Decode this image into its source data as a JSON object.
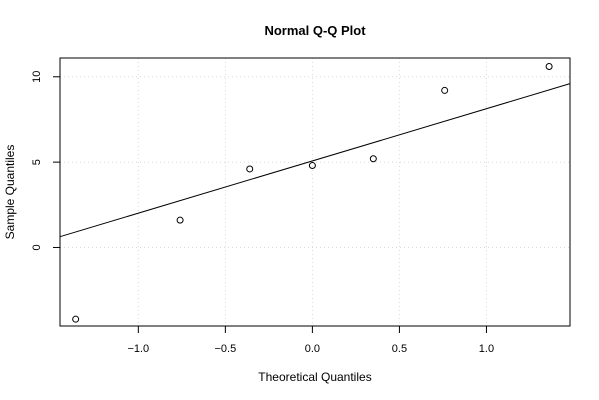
{
  "chart_data": {
    "type": "scatter",
    "title": "Normal Q-Q Plot",
    "xlabel": "Theoretical Quantiles",
    "ylabel": "Sample Quantiles",
    "xlim": [
      -1.45,
      1.48
    ],
    "ylim": [
      -4.6,
      11.1
    ],
    "xticks": [
      -1.0,
      -0.5,
      0.0,
      0.5,
      1.0
    ],
    "xtick_labels": [
      "−1.0",
      "−0.5",
      "0.0",
      "0.5",
      "1.0"
    ],
    "yticks": [
      0,
      5,
      10
    ],
    "ytick_labels": [
      "0",
      "5",
      "10"
    ],
    "grid": true,
    "points": [
      {
        "x": -1.36,
        "y": -4.2
      },
      {
        "x": -0.76,
        "y": 1.6
      },
      {
        "x": -0.36,
        "y": 4.6
      },
      {
        "x": 0.0,
        "y": 4.8
      },
      {
        "x": 0.35,
        "y": 5.2
      },
      {
        "x": 0.76,
        "y": 9.2
      },
      {
        "x": 1.36,
        "y": 10.6
      }
    ],
    "reference_line": {
      "intercept": 5.07,
      "slope": 3.06
    }
  }
}
